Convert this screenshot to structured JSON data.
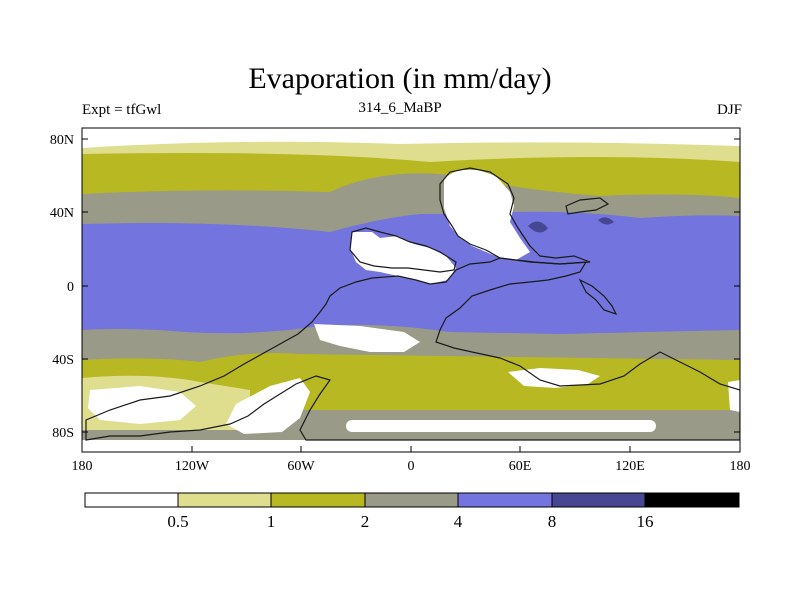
{
  "title": "Evaporation (in mm/day)",
  "left_label": "Expt = tfGwl",
  "center_label": "314_6_MaBP",
  "right_label": "DJF",
  "lat_labels": [
    "80N",
    "40N",
    "0",
    "40S",
    "80S"
  ],
  "lon_labels": [
    "180",
    "120W",
    "60W",
    "0",
    "60E",
    "120E",
    "180"
  ],
  "colorbar": {
    "colors": [
      "#ffffff",
      "#dede8e",
      "#b8b822",
      "#9a9a88",
      "#7474de",
      "#464692",
      "#000000"
    ],
    "labels": [
      "0.5",
      "1",
      "2",
      "4",
      "8",
      "16"
    ]
  },
  "chart_data": {
    "type": "heatmap",
    "title": "Evaporation (in mm/day)",
    "variable": "Evaporation",
    "units": "mm/day",
    "experiment": "tfGwl",
    "period": "314_6_MaBP",
    "season": "DJF",
    "levels": [
      0.5,
      1,
      2,
      4,
      8,
      16
    ],
    "x_ticks": [
      "180",
      "120W",
      "60W",
      "0",
      "60E",
      "120E",
      "180"
    ],
    "y_ticks": [
      "80N",
      "40N",
      "0",
      "40S",
      "80S"
    ],
    "lon_range": [
      -180,
      180
    ],
    "lat_range": [
      -90,
      90
    ]
  }
}
